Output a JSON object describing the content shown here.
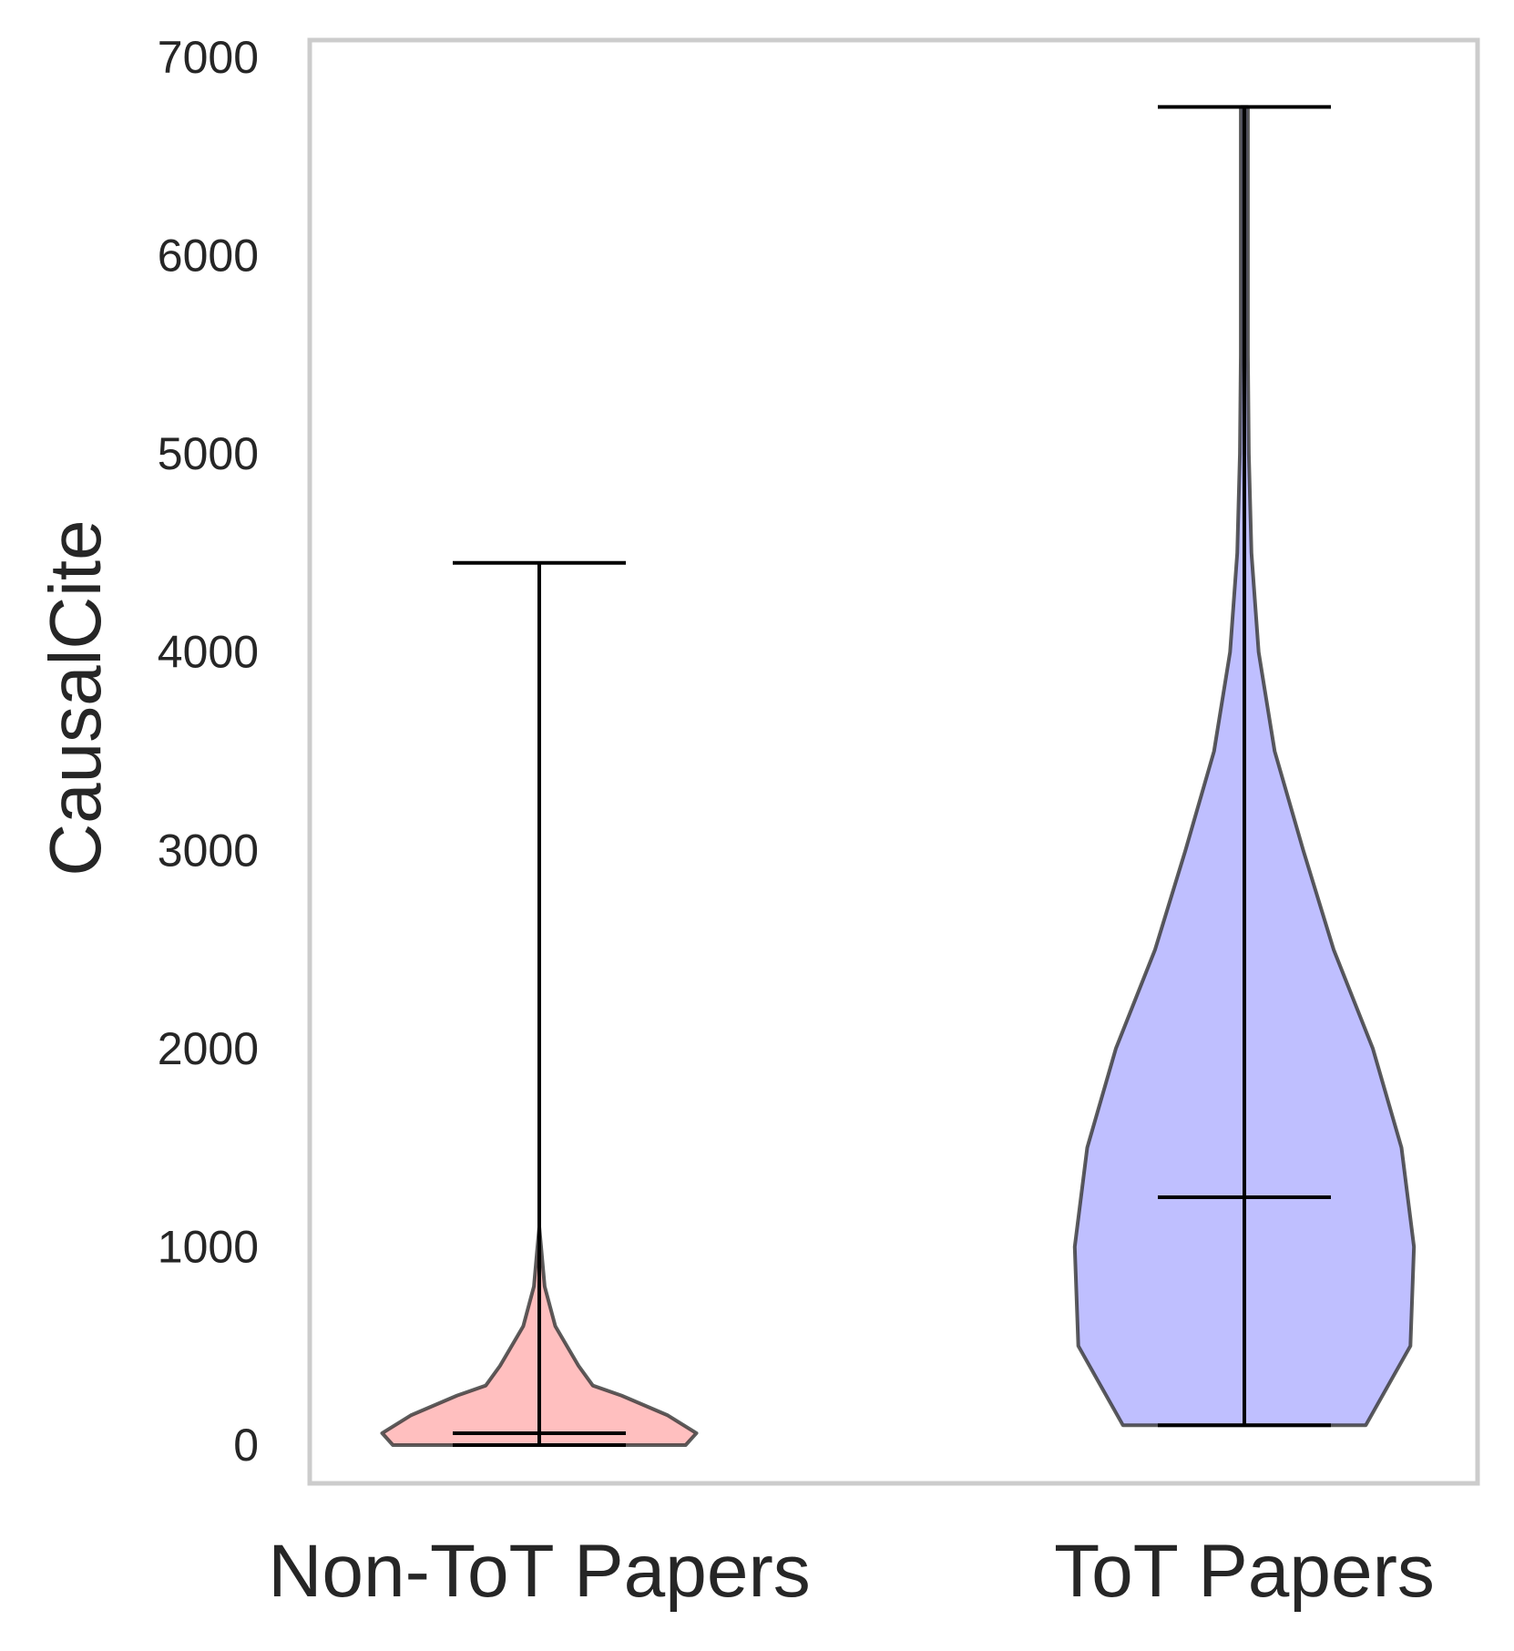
{
  "chart_data": {
    "type": "violin",
    "ylabel": "CausalCite",
    "ylim": [
      -200,
      7100
    ],
    "yticks": [
      0,
      1000,
      2000,
      3000,
      4000,
      5000,
      6000,
      7000
    ],
    "ytick_labels": [
      "0",
      "1000",
      "2000",
      "3000",
      "4000",
      "5000",
      "6000",
      "7000"
    ],
    "grid": false,
    "series": [
      {
        "category": "Non-ToT Papers",
        "color": "#ff8080",
        "min": 0,
        "max": 4450,
        "mean": 60,
        "density_profile": [
          [
            0,
            0.82
          ],
          [
            60,
            0.88
          ],
          [
            150,
            0.72
          ],
          [
            250,
            0.46
          ],
          [
            300,
            0.3
          ],
          [
            400,
            0.22
          ],
          [
            600,
            0.09
          ],
          [
            800,
            0.03
          ],
          [
            1000,
            0.01
          ],
          [
            1100,
            0.0
          ]
        ]
      },
      {
        "category": "ToT Papers",
        "color": "#8080ff",
        "min": 100,
        "max": 6750,
        "mean": 1250,
        "density_profile": [
          [
            100,
            0.68
          ],
          [
            500,
            0.93
          ],
          [
            1000,
            0.95
          ],
          [
            1500,
            0.88
          ],
          [
            2000,
            0.72
          ],
          [
            2500,
            0.5
          ],
          [
            3000,
            0.33
          ],
          [
            3500,
            0.17
          ],
          [
            4000,
            0.08
          ],
          [
            4500,
            0.04
          ],
          [
            5000,
            0.025
          ],
          [
            5500,
            0.02
          ],
          [
            6000,
            0.02
          ],
          [
            6500,
            0.02
          ],
          [
            6750,
            0.02
          ]
        ]
      }
    ]
  }
}
